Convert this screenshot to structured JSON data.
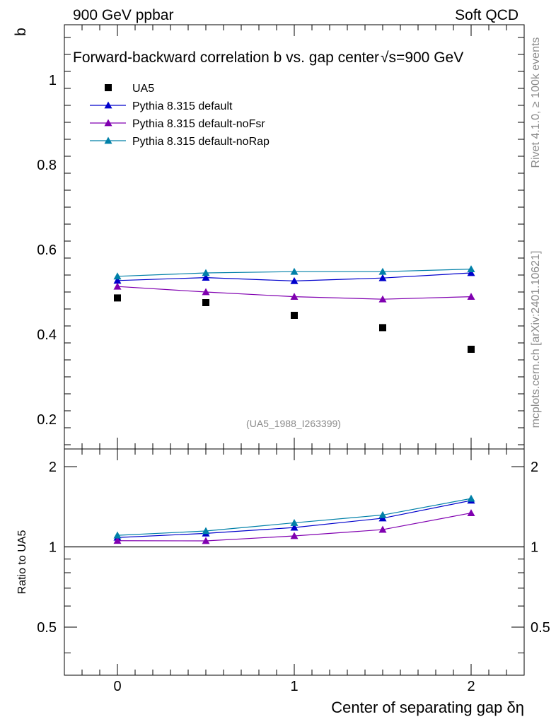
{
  "header": {
    "left": "900 GeV ppbar",
    "right": "Soft QCD"
  },
  "side_labels": {
    "rivet": "Rivet 4.1.0, ≥ 100k events",
    "mcplots": "mcplots.cern.ch [arXiv:2401.10621]"
  },
  "chart_data": {
    "type": "scatter",
    "title": "Forward-backward correlation b  vs. gap center",
    "title_energy": "√s=900 GeV",
    "xlabel": "Center of separating gap δη",
    "ylabel": "b",
    "ratio_ylabel": "Ratio to UA5",
    "analysis_id": "(UA5_1988_I263399)",
    "xlim": [
      -0.3,
      2.3
    ],
    "ylim": [
      0.13,
      1.13
    ],
    "ratio_ylim": [
      0.33,
      2.33
    ],
    "xticks": [
      {
        "v": 0,
        "label": "0"
      },
      {
        "v": 1,
        "label": "1"
      },
      {
        "v": 2,
        "label": "2"
      }
    ],
    "yticks": [
      {
        "v": 0.2,
        "label": "0.2"
      },
      {
        "v": 0.4,
        "label": "0.4"
      },
      {
        "v": 0.6,
        "label": "0.6"
      },
      {
        "v": 0.8,
        "label": "0.8"
      },
      {
        "v": 1.0,
        "label": "1"
      }
    ],
    "ratio_yticks": [
      {
        "v": 0.5,
        "label": "0.5"
      },
      {
        "v": 1,
        "label": "1"
      },
      {
        "v": 2,
        "label": "2"
      }
    ],
    "x": [
      0,
      0.5,
      1,
      1.5,
      2
    ],
    "data": {
      "name": "UA5",
      "color": "#000000",
      "values": [
        0.486,
        0.475,
        0.445,
        0.416,
        0.365
      ]
    },
    "series": [
      {
        "name": "Pythia 8.315 default",
        "color": "#0000cc",
        "values": [
          0.527,
          0.534,
          0.526,
          0.533,
          0.545
        ]
      },
      {
        "name": "Pythia 8.315 default-noFsr",
        "color": "#8000b0",
        "values": [
          0.513,
          0.5,
          0.489,
          0.483,
          0.489
        ]
      },
      {
        "name": "Pythia 8.315 default-noRap",
        "color": "#0080a8",
        "values": [
          0.537,
          0.545,
          0.548,
          0.548,
          0.554
        ]
      }
    ],
    "ratio_series": [
      {
        "name": "Pythia 8.315 default",
        "values": [
          1.084,
          1.124,
          1.182,
          1.281,
          1.493
        ]
      },
      {
        "name": "Pythia 8.315 default-noFsr",
        "values": [
          1.055,
          1.053,
          1.099,
          1.161,
          1.34
        ]
      },
      {
        "name": "Pythia 8.315 default-noRap",
        "values": [
          1.105,
          1.147,
          1.231,
          1.317,
          1.518
        ]
      }
    ]
  }
}
